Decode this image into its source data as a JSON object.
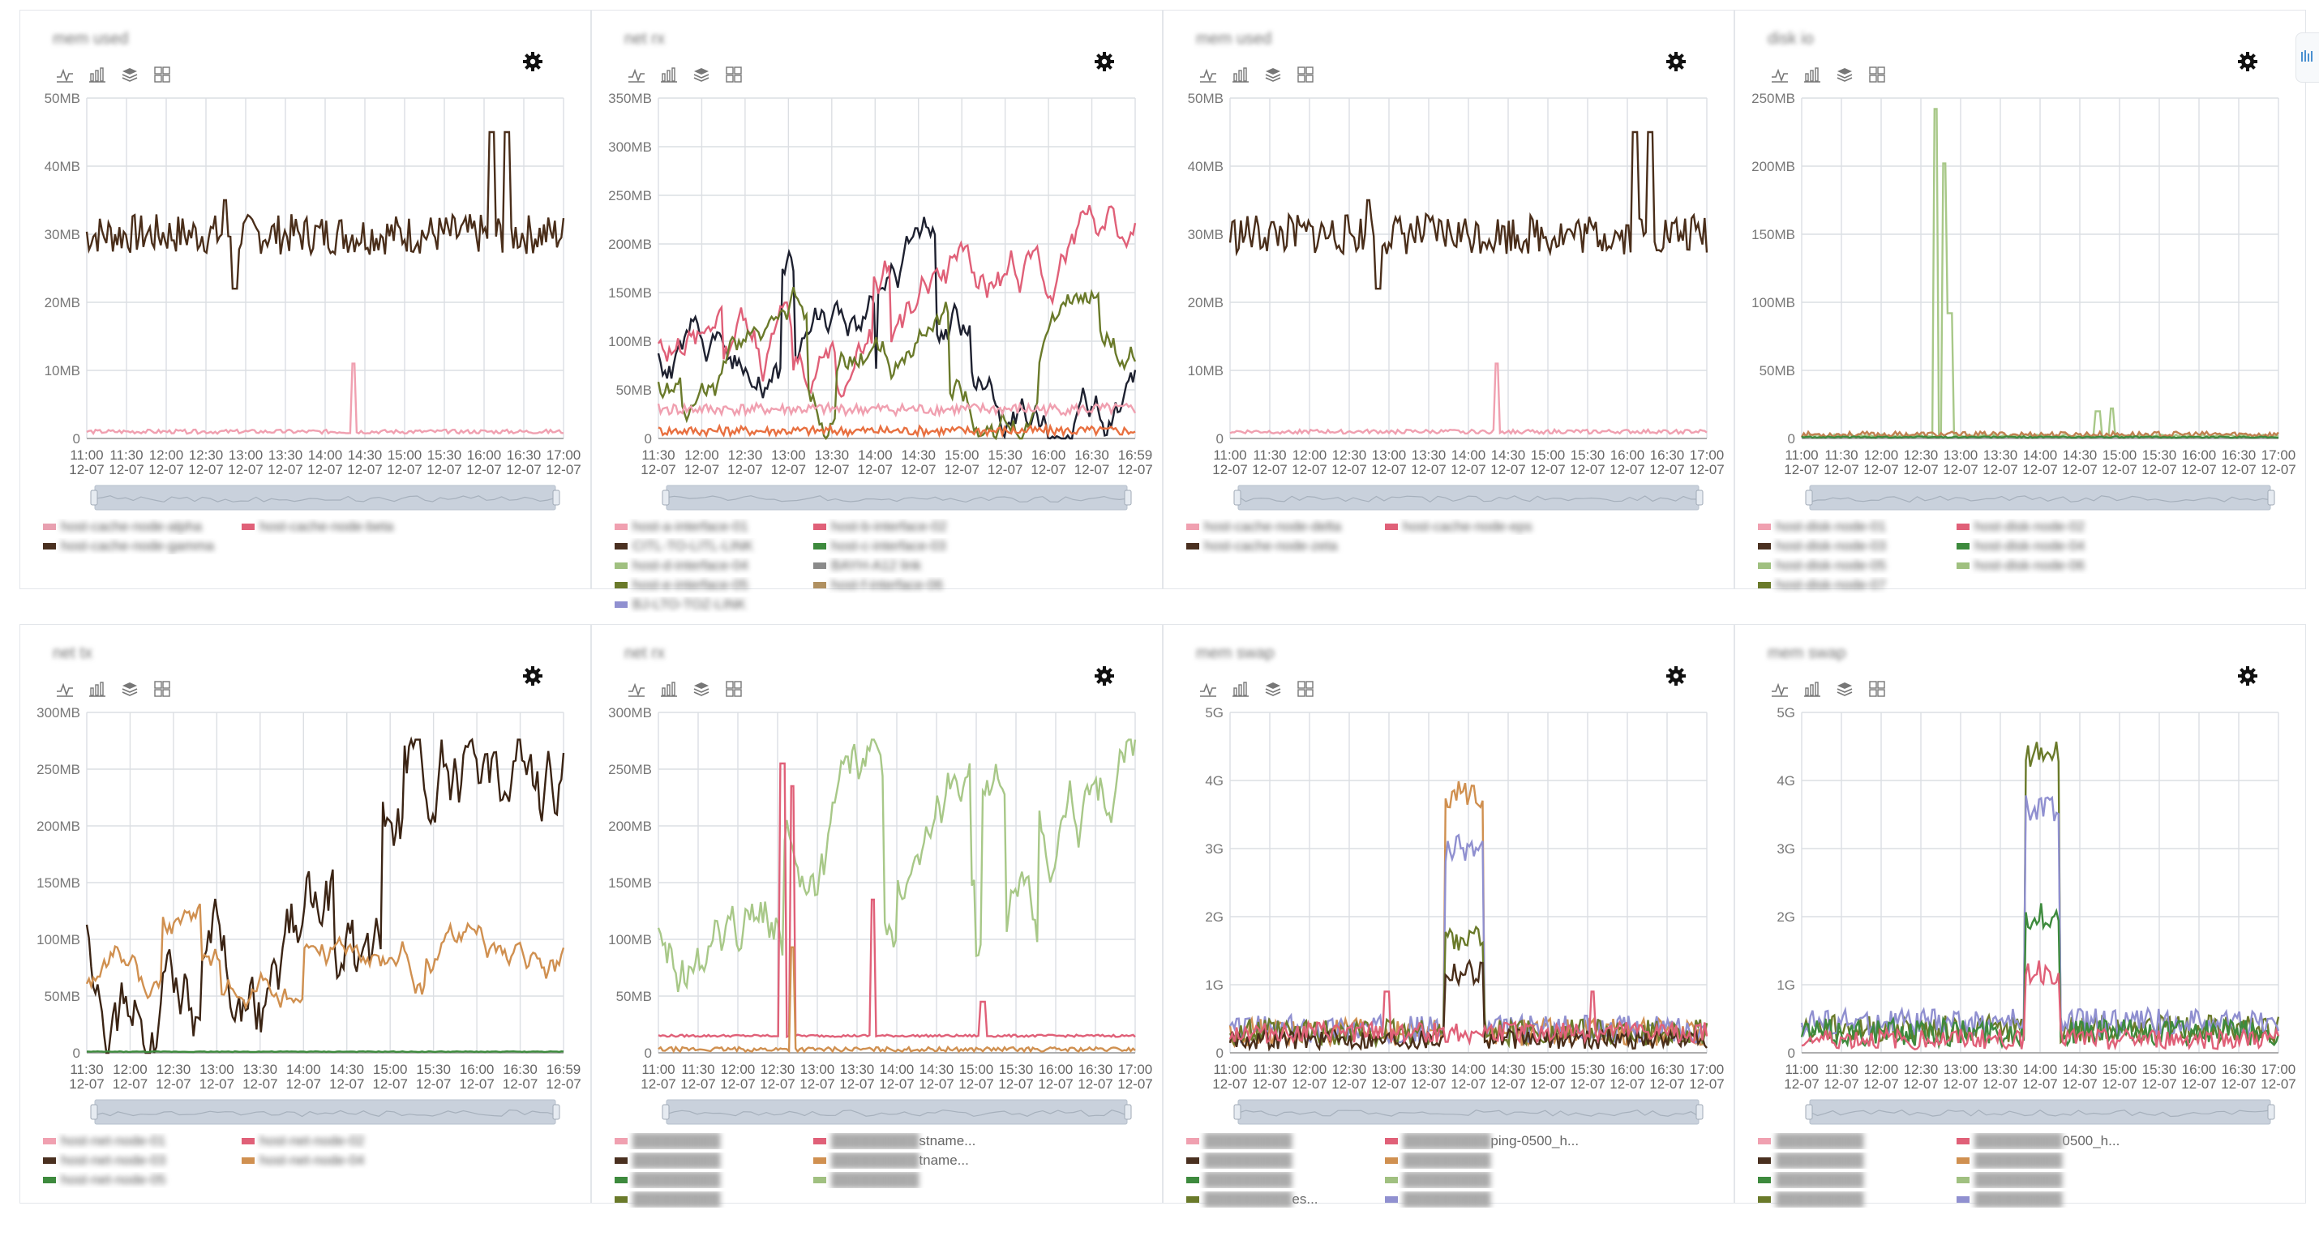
{
  "panels": [
    {
      "id": "p0",
      "title": "mem used",
      "legendMode": "blur",
      "yTicks": [
        "0",
        "10MB",
        "20MB",
        "30MB",
        "40MB",
        "50MB"
      ],
      "xTimes": [
        "11:00",
        "11:30",
        "12:00",
        "12:30",
        "13:00",
        "13:30",
        "14:00",
        "14:30",
        "15:00",
        "15:30",
        "16:00",
        "16:30",
        "17:00"
      ],
      "xDate": "12-07",
      "legend": [
        {
          "color": "#e8a0b0",
          "text": "host-cache-node-alpha"
        },
        {
          "color": "#e06078",
          "text": "host-cache-node-beta"
        },
        {
          "color": "#4a3020",
          "text": "host-cache-node-gamma"
        }
      ],
      "series": [
        {
          "color": "#4a2e1a",
          "kind": "flat",
          "base": 30,
          "amp": 3,
          "bumps": [
            [
              0.29,
              5
            ],
            [
              0.31,
              -8
            ],
            [
              0.85,
              15
            ],
            [
              0.88,
              15
            ]
          ]
        },
        {
          "color": "#f0a0b0",
          "kind": "flat",
          "base": 1,
          "amp": 0.3,
          "bumps": [
            [
              0.56,
              10
            ]
          ]
        }
      ],
      "ymax": 50
    },
    {
      "id": "p1",
      "title": "net rx",
      "legendMode": "blur",
      "yTicks": [
        "0",
        "50MB",
        "100MB",
        "150MB",
        "200MB",
        "250MB",
        "300MB",
        "350MB"
      ],
      "xTimes": [
        "11:30",
        "12:00",
        "12:30",
        "13:00",
        "13:30",
        "14:00",
        "14:30",
        "15:00",
        "15:30",
        "16:00",
        "16:30",
        "16:59"
      ],
      "xDate": "12-07",
      "legend": [
        {
          "color": "#f0a0b0",
          "text": "host-a-interface-01"
        },
        {
          "color": "#e06078",
          "text": "host-b-interface-02"
        },
        {
          "color": "#4a3020",
          "text": "CITL-TO-LITL-LINK"
        },
        {
          "color": "#3d8a3d",
          "text": "host-c-interface-03"
        },
        {
          "color": "#a0c080",
          "text": "host-d-interface-04"
        },
        {
          "color": "#8a8a8a",
          "text": "BAYH-A12 link"
        },
        {
          "color": "#6a7a2a",
          "text": "host-e-interface-05"
        },
        {
          "color": "#b09060",
          "text": "host-f-interface-06"
        },
        {
          "color": "#9090d0",
          "text": "BJ-LTO-TOZ-LINK"
        }
      ],
      "series": [
        {
          "color": "#1e2130",
          "kind": "busy",
          "base": 100,
          "amp": 60,
          "seed": 3
        },
        {
          "color": "#e06078",
          "kind": "busy",
          "base": 90,
          "amp": 60,
          "seed": 5
        },
        {
          "color": "#6a7a2a",
          "kind": "busy",
          "base": 60,
          "amp": 50,
          "seed": 7
        },
        {
          "color": "#f0a0b0",
          "kind": "flat",
          "base": 30,
          "amp": 6
        },
        {
          "color": "#e87040",
          "kind": "flat",
          "base": 8,
          "amp": 5
        }
      ],
      "ymax": 350
    },
    {
      "id": "p2",
      "title": "mem used",
      "legendMode": "blur",
      "yTicks": [
        "0",
        "10MB",
        "20MB",
        "30MB",
        "40MB",
        "50MB"
      ],
      "xTimes": [
        "11:00",
        "11:30",
        "12:00",
        "12:30",
        "13:00",
        "13:30",
        "14:00",
        "14:30",
        "15:00",
        "15:30",
        "16:00",
        "16:30",
        "17:00"
      ],
      "xDate": "12-07",
      "legend": [
        {
          "color": "#f0a0b0",
          "text": "host-cache-node-delta"
        },
        {
          "color": "#e06078",
          "text": "host-cache-node-eps"
        },
        {
          "color": "#4a3020",
          "text": "host-cache-node-zeta"
        }
      ],
      "series": [
        {
          "color": "#4a2e1a",
          "kind": "flat",
          "base": 30,
          "amp": 3,
          "bumps": [
            [
              0.29,
              5
            ],
            [
              0.31,
              -8
            ],
            [
              0.85,
              15
            ],
            [
              0.88,
              15
            ]
          ]
        },
        {
          "color": "#f0a0b0",
          "kind": "flat",
          "base": 1,
          "amp": 0.3,
          "bumps": [
            [
              0.56,
              10
            ]
          ]
        }
      ],
      "ymax": 50
    },
    {
      "id": "p3",
      "title": "disk io",
      "legendMode": "blur",
      "yTicks": [
        "0",
        "50MB",
        "100MB",
        "150MB",
        "200MB",
        "250MB"
      ],
      "xTimes": [
        "11:00",
        "11:30",
        "12:00",
        "12:30",
        "13:00",
        "13:30",
        "14:00",
        "14:30",
        "15:00",
        "15:30",
        "16:00",
        "16:30",
        "17:00"
      ],
      "xDate": "12-07",
      "legend": [
        {
          "color": "#f0a0b0",
          "text": "host-disk-node-01"
        },
        {
          "color": "#e06078",
          "text": "host-disk-node-02"
        },
        {
          "color": "#4a3020",
          "text": "host-disk-node-03"
        },
        {
          "color": "#3d8a3d",
          "text": "host-disk-node-04"
        },
        {
          "color": "#a0c080",
          "text": "host-disk-node-05"
        },
        {
          "color": "#a0c080",
          "text": "host-disk-node-06"
        },
        {
          "color": "#6a7a2a",
          "text": "host-disk-node-07"
        }
      ],
      "series": [
        {
          "color": "#a8c888",
          "kind": "flat",
          "base": 2,
          "amp": 1,
          "bumps": [
            [
              0.28,
              240
            ],
            [
              0.3,
              200
            ],
            [
              0.31,
              90
            ],
            [
              0.62,
              18
            ],
            [
              0.65,
              20
            ]
          ]
        },
        {
          "color": "#c08050",
          "kind": "flat",
          "base": 3,
          "amp": 2
        },
        {
          "color": "#3d8a3d",
          "kind": "flat",
          "base": 1,
          "amp": 0.5
        }
      ],
      "ymax": 250
    },
    {
      "id": "p4",
      "title": "net tx",
      "legendMode": "blur",
      "yTicks": [
        "0",
        "50MB",
        "100MB",
        "150MB",
        "200MB",
        "250MB",
        "300MB"
      ],
      "xTimes": [
        "11:30",
        "12:00",
        "12:30",
        "13:00",
        "13:30",
        "14:00",
        "14:30",
        "15:00",
        "15:30",
        "16:00",
        "16:30",
        "16:59"
      ],
      "xDate": "12-07",
      "legend": [
        {
          "color": "#f0a0b0",
          "text": "host-net-node-01"
        },
        {
          "color": "#e06078",
          "text": "host-net-node-02"
        },
        {
          "color": "#4a3020",
          "text": "host-net-node-03"
        },
        {
          "color": "#d09050",
          "text": "host-net-node-04"
        },
        {
          "color": "#3d8a3d",
          "text": "host-net-node-05"
        }
      ],
      "series": [
        {
          "color": "#3b2414",
          "kind": "busy",
          "base": 120,
          "amp": 110,
          "seed": 11
        },
        {
          "color": "#d09050",
          "kind": "busy",
          "base": 70,
          "amp": 40,
          "seed": 13
        },
        {
          "color": "#3d8a3d",
          "kind": "flat",
          "base": 1,
          "amp": 0.3
        }
      ],
      "ymax": 300
    },
    {
      "id": "p5",
      "title": "net rx",
      "legendMode": "partial",
      "yTicks": [
        "0",
        "50MB",
        "100MB",
        "150MB",
        "200MB",
        "250MB",
        "300MB"
      ],
      "xTimes": [
        "11:00",
        "11:30",
        "12:00",
        "12:30",
        "13:00",
        "13:30",
        "14:00",
        "14:30",
        "15:00",
        "15:30",
        "16:00",
        "16:30",
        "17:00"
      ],
      "xDate": "12-07",
      "legend": [
        {
          "color": "#f0a0b0",
          "text": "",
          "suffix": ""
        },
        {
          "color": "#e06078",
          "text": "",
          "suffix": "stname..."
        },
        {
          "color": "#4a3020",
          "text": "",
          "suffix": ""
        },
        {
          "color": "#d09050",
          "text": "",
          "suffix": "tname..."
        },
        {
          "color": "#3d8a3d",
          "text": "",
          "suffix": ""
        },
        {
          "color": "#a0c080",
          "text": "",
          "suffix": ""
        },
        {
          "color": "#6a7a2a",
          "text": "",
          "suffix": ""
        }
      ],
      "series": [
        {
          "color": "#a8c888",
          "kind": "busy",
          "base": 120,
          "amp": 80,
          "seed": 17
        },
        {
          "color": "#e06078",
          "kind": "flat",
          "base": 15,
          "amp": 1,
          "bumps": [
            [
              0.26,
              240
            ],
            [
              0.28,
              220
            ],
            [
              0.45,
              120
            ],
            [
              0.68,
              30
            ]
          ]
        },
        {
          "color": "#d09050",
          "kind": "flat",
          "base": 3,
          "amp": 2,
          "bumps": [
            [
              0.28,
              90
            ]
          ]
        }
      ],
      "ymax": 300
    },
    {
      "id": "p6",
      "title": "mem swap",
      "legendMode": "partial",
      "yTicks": [
        "0",
        "1G",
        "2G",
        "3G",
        "4G",
        "5G"
      ],
      "xTimes": [
        "11:00",
        "11:30",
        "12:00",
        "12:30",
        "13:00",
        "13:30",
        "14:00",
        "14:30",
        "15:00",
        "15:30",
        "16:00",
        "16:30",
        "17:00"
      ],
      "xDate": "12-07",
      "legend": [
        {
          "color": "#f0a0b0",
          "text": "",
          "suffix": ""
        },
        {
          "color": "#e06078",
          "text": "",
          "suffix": "ping-0500_h..."
        },
        {
          "color": "#4a3020",
          "text": "",
          "suffix": ""
        },
        {
          "color": "#d09050",
          "text": "",
          "suffix": ""
        },
        {
          "color": "#3d8a3d",
          "text": "",
          "suffix": ""
        },
        {
          "color": "#a0c080",
          "text": "",
          "suffix": ""
        },
        {
          "color": "#6a7a2a",
          "text": "",
          "suffix": "es..."
        },
        {
          "color": "#9090d0",
          "text": "",
          "suffix": ""
        }
      ],
      "series": [
        {
          "color": "#d09050",
          "kind": "block",
          "base": 0.3,
          "amp": 0.2,
          "lo": 0.45,
          "hi": 0.53,
          "level": 3.8
        },
        {
          "color": "#9090d0",
          "kind": "block",
          "base": 0.35,
          "amp": 0.2,
          "lo": 0.45,
          "hi": 0.53,
          "level": 3.0
        },
        {
          "color": "#6a7a2a",
          "kind": "block",
          "base": 0.3,
          "amp": 0.2,
          "lo": 0.45,
          "hi": 0.53,
          "level": 1.7
        },
        {
          "color": "#4a2e1a",
          "kind": "block",
          "base": 0.2,
          "amp": 0.15,
          "lo": 0.45,
          "hi": 0.53,
          "level": 1.2
        },
        {
          "color": "#e06078",
          "kind": "flat",
          "base": 0.3,
          "amp": 0.15,
          "bumps": [
            [
              0.33,
              0.6
            ],
            [
              0.76,
              0.6
            ]
          ]
        }
      ],
      "ymax": 5
    },
    {
      "id": "p7",
      "title": "mem swap",
      "legendMode": "partial",
      "yTicks": [
        "0",
        "1G",
        "2G",
        "3G",
        "4G",
        "5G"
      ],
      "xTimes": [
        "11:00",
        "11:30",
        "12:00",
        "12:30",
        "13:00",
        "13:30",
        "14:00",
        "14:30",
        "15:00",
        "15:30",
        "16:00",
        "16:30",
        "17:00"
      ],
      "xDate": "12-07",
      "legend": [
        {
          "color": "#f0a0b0",
          "text": "",
          "suffix": ""
        },
        {
          "color": "#e06078",
          "text": "",
          "suffix": "0500_h..."
        },
        {
          "color": "#4a3020",
          "text": "",
          "suffix": ""
        },
        {
          "color": "#d09050",
          "text": "",
          "suffix": ""
        },
        {
          "color": "#3d8a3d",
          "text": "",
          "suffix": ""
        },
        {
          "color": "#a0c080",
          "text": "",
          "suffix": ""
        },
        {
          "color": "#6a7a2a",
          "text": "",
          "suffix": ""
        },
        {
          "color": "#9090d0",
          "text": "",
          "suffix": ""
        }
      ],
      "series": [
        {
          "color": "#6a7a2a",
          "kind": "block",
          "base": 0.35,
          "amp": 0.2,
          "lo": 0.47,
          "hi": 0.54,
          "level": 4.4
        },
        {
          "color": "#9090d0",
          "kind": "block",
          "base": 0.45,
          "amp": 0.2,
          "lo": 0.47,
          "hi": 0.54,
          "level": 3.6
        },
        {
          "color": "#3d8a3d",
          "kind": "block",
          "base": 0.3,
          "amp": 0.2,
          "lo": 0.47,
          "hi": 0.54,
          "level": 2.0
        },
        {
          "color": "#e06078",
          "kind": "block",
          "base": 0.2,
          "amp": 0.15,
          "lo": 0.47,
          "hi": 0.54,
          "level": 1.2
        }
      ],
      "ymax": 5
    }
  ]
}
